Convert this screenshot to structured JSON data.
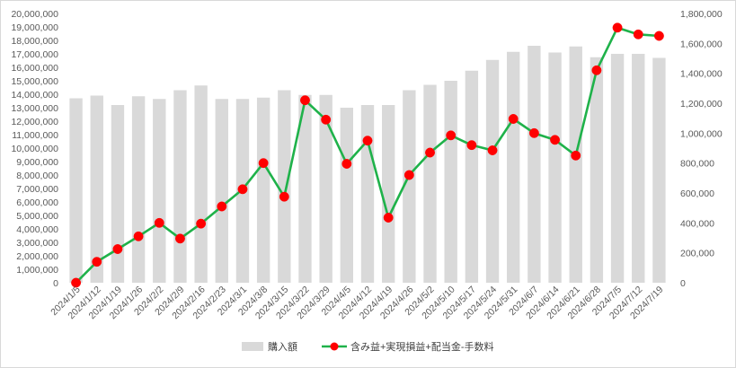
{
  "chart_data": {
    "type": "bar+line",
    "categories": [
      "2024/1/5",
      "2024/1/12",
      "2024/1/19",
      "2024/1/26",
      "2024/2/2",
      "2024/2/9",
      "2024/2/16",
      "2024/2/23",
      "2024/3/1",
      "2024/3/8",
      "2024/3/15",
      "2024/3/22",
      "2024/3/29",
      "2024/4/5",
      "2024/4/12",
      "2024/4/19",
      "2024/4/26",
      "2024/5/2",
      "2024/5/10",
      "2024/5/17",
      "2024/5/24",
      "2024/5/31",
      "2024/6/7",
      "2024/6/14",
      "2024/6/21",
      "2024/6/28",
      "2024/7/5",
      "2024/7/12",
      "2024/7/19"
    ],
    "series": [
      {
        "name": "購入額",
        "kind": "bar",
        "axis": "left",
        "color": "#d9d9d9",
        "values": [
          13700000,
          13900000,
          13200000,
          13850000,
          13650000,
          14300000,
          14650000,
          13650000,
          13650000,
          13750000,
          14300000,
          13950000,
          13950000,
          13000000,
          13200000,
          13200000,
          14300000,
          14700000,
          15000000,
          15750000,
          16550000,
          17150000,
          17600000,
          17100000,
          17550000,
          16750000,
          17000000,
          17000000,
          16700000
        ]
      },
      {
        "name": "含み益+実現損益+配当金-手数料",
        "kind": "line",
        "axis": "right",
        "line_color": "#1fb24a",
        "marker_color": "#ff0000",
        "values": [
          0,
          140000,
          225000,
          310000,
          400000,
          295000,
          395000,
          510000,
          625000,
          800000,
          575000,
          1220000,
          1090000,
          795000,
          950000,
          435000,
          720000,
          870000,
          985000,
          920000,
          885000,
          1095000,
          1000000,
          955000,
          850000,
          1420000,
          1705000,
          1660000,
          1650000
        ]
      }
    ],
    "y_left": {
      "min": 0,
      "max": 20000000,
      "step": 1000000,
      "tick_labels": [
        "0",
        "1,000,000",
        "2,000,000",
        "3,000,000",
        "4,000,000",
        "5,000,000",
        "6,000,000",
        "7,000,000",
        "8,000,000",
        "9,000,000",
        "10,000,000",
        "11,000,000",
        "12,000,000",
        "13,000,000",
        "14,000,000",
        "15,000,000",
        "16,000,000",
        "17,000,000",
        "18,000,000",
        "19,000,000",
        "20,000,000"
      ]
    },
    "y_right": {
      "min": 0,
      "max": 1800000,
      "step": 200000,
      "tick_labels": [
        "0",
        "200,000",
        "400,000",
        "600,000",
        "800,000",
        "1,000,000",
        "1,200,000",
        "1,400,000",
        "1,600,000",
        "1,800,000"
      ]
    },
    "grid": false,
    "legend": "bottom"
  }
}
